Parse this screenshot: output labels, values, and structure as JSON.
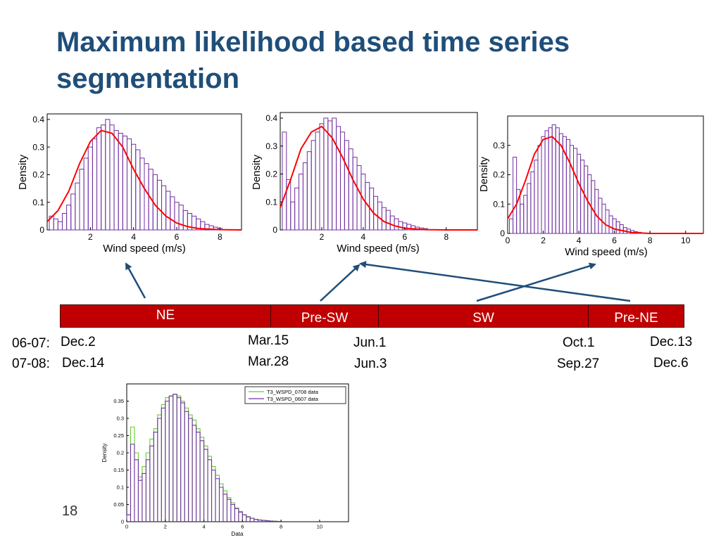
{
  "slide": {
    "title": "Maximum likelihood based time series segmentation",
    "page_number": "18"
  },
  "colors": {
    "title": "#1f4e79",
    "histogram": "#7030a0",
    "fit_curve": "#ff0000",
    "season_bar": "#c00000",
    "arrow": "#1f4e79",
    "series_0708": "#66cc33"
  },
  "seasons": {
    "segments": [
      "NE",
      "Pre-SW",
      "SW",
      "Pre-NE"
    ]
  },
  "dates": {
    "row1": {
      "label": "06-07:",
      "values": [
        "Dec.2",
        "Mar.15",
        "Jun.1",
        "Oct.1",
        "Dec.13"
      ]
    },
    "row2": {
      "label": "07-08:",
      "values": [
        "Dec.14",
        "Mar.28",
        "Jun.3",
        "Sep.27",
        "Dec.6"
      ]
    }
  },
  "chart_data": [
    {
      "type": "bar",
      "xlabel": "Wind speed (m/s)",
      "ylabel": "Density",
      "xlim": [
        0,
        9
      ],
      "ylim": [
        0,
        0.42
      ],
      "xticks": [
        2,
        4,
        6,
        8
      ],
      "yticks": [
        0,
        0.1,
        0.2,
        0.3,
        0.4
      ],
      "bins": {
        "start": 0.1,
        "width": 0.2,
        "values": [
          0.05,
          0.04,
          0.03,
          0.06,
          0.09,
          0.13,
          0.17,
          0.22,
          0.26,
          0.3,
          0.33,
          0.37,
          0.38,
          0.4,
          0.38,
          0.36,
          0.35,
          0.34,
          0.33,
          0.31,
          0.29,
          0.26,
          0.24,
          0.22,
          0.2,
          0.18,
          0.16,
          0.14,
          0.12,
          0.1,
          0.09,
          0.07,
          0.06,
          0.05,
          0.04,
          0.03,
          0.02,
          0.015,
          0.01,
          0.006
        ]
      },
      "fit": {
        "x": [
          0,
          0.5,
          1,
          1.5,
          2,
          2.5,
          3,
          3.5,
          4,
          4.5,
          5,
          5.5,
          6,
          6.5,
          7,
          8,
          9
        ],
        "y": [
          0.03,
          0.07,
          0.14,
          0.24,
          0.32,
          0.36,
          0.35,
          0.3,
          0.22,
          0.15,
          0.09,
          0.05,
          0.025,
          0.012,
          0.005,
          0.001,
          0
        ]
      }
    },
    {
      "type": "bar",
      "xlabel": "Wind speed (m/s)",
      "ylabel": "Density",
      "xlim": [
        0,
        9.5
      ],
      "ylim": [
        0,
        0.42
      ],
      "xticks": [
        2,
        4,
        6,
        8
      ],
      "yticks": [
        0,
        0.1,
        0.2,
        0.3,
        0.4
      ],
      "bins": {
        "start": 0.1,
        "width": 0.2,
        "values": [
          0.35,
          0.18,
          0.1,
          0.15,
          0.2,
          0.24,
          0.28,
          0.32,
          0.35,
          0.38,
          0.4,
          0.39,
          0.4,
          0.37,
          0.35,
          0.32,
          0.29,
          0.26,
          0.23,
          0.2,
          0.17,
          0.15,
          0.12,
          0.1,
          0.08,
          0.07,
          0.05,
          0.04,
          0.03,
          0.025,
          0.02,
          0.015,
          0.01,
          0.007,
          0.005
        ]
      },
      "fit": {
        "x": [
          0,
          0.5,
          1,
          1.5,
          2,
          2.5,
          3,
          3.5,
          4,
          4.5,
          5,
          5.5,
          6,
          7,
          8,
          9.5
        ],
        "y": [
          0.08,
          0.18,
          0.29,
          0.35,
          0.37,
          0.33,
          0.26,
          0.18,
          0.11,
          0.06,
          0.03,
          0.015,
          0.006,
          0.001,
          0,
          0
        ]
      }
    },
    {
      "type": "bar",
      "xlabel": "Wind speed (m/s)",
      "ylabel": "Density",
      "xlim": [
        0,
        11
      ],
      "ylim": [
        0,
        0.4
      ],
      "xticks": [
        0,
        2,
        4,
        6,
        8,
        10
      ],
      "yticks": [
        0,
        0.1,
        0.2,
        0.3
      ],
      "bins": {
        "start": 0.1,
        "width": 0.2,
        "values": [
          0.05,
          0.26,
          0.15,
          0.1,
          0.13,
          0.17,
          0.21,
          0.25,
          0.3,
          0.33,
          0.35,
          0.36,
          0.37,
          0.36,
          0.34,
          0.33,
          0.32,
          0.3,
          0.29,
          0.27,
          0.25,
          0.23,
          0.2,
          0.18,
          0.15,
          0.12,
          0.1,
          0.08,
          0.06,
          0.05,
          0.04,
          0.03,
          0.02,
          0.015,
          0.01,
          0.006,
          0.004,
          0.002
        ]
      },
      "fit": {
        "x": [
          0,
          0.5,
          1,
          1.5,
          2,
          2.5,
          3,
          3.5,
          4,
          4.5,
          5,
          5.5,
          6,
          7,
          8,
          11
        ],
        "y": [
          0.05,
          0.1,
          0.18,
          0.27,
          0.32,
          0.33,
          0.3,
          0.24,
          0.17,
          0.11,
          0.06,
          0.03,
          0.015,
          0.003,
          0,
          0
        ]
      }
    },
    {
      "type": "bar",
      "xlabel": "Data",
      "ylabel": "Density",
      "xlim": [
        0,
        11.5
      ],
      "ylim": [
        0,
        0.4
      ],
      "xticks": [
        0,
        2,
        4,
        6,
        8,
        10
      ],
      "yticks": [
        0,
        0.05,
        0.1,
        0.15,
        0.2,
        0.25,
        0.3,
        0.35
      ],
      "bin_start": 0,
      "bin_width": 0.2,
      "series": [
        {
          "name": "T3_WSPD_0708 data",
          "values": [
            0.02,
            0.275,
            0.2,
            0.13,
            0.16,
            0.2,
            0.24,
            0.27,
            0.31,
            0.34,
            0.36,
            0.365,
            0.37,
            0.365,
            0.35,
            0.33,
            0.31,
            0.295,
            0.27,
            0.245,
            0.22,
            0.19,
            0.16,
            0.135,
            0.11,
            0.09,
            0.07,
            0.055,
            0.04,
            0.03,
            0.02,
            0.015,
            0.01,
            0.007,
            0.005,
            0.004,
            0.003,
            0.002,
            0.0015,
            0.001
          ]
        },
        {
          "name": "T3_WSPD_0607 data",
          "values": [
            0.02,
            0.225,
            0.18,
            0.12,
            0.14,
            0.18,
            0.22,
            0.26,
            0.3,
            0.33,
            0.35,
            0.365,
            0.37,
            0.36,
            0.345,
            0.32,
            0.3,
            0.28,
            0.26,
            0.235,
            0.21,
            0.18,
            0.15,
            0.125,
            0.1,
            0.08,
            0.065,
            0.05,
            0.038,
            0.028,
            0.02,
            0.014,
            0.01,
            0.007,
            0.005,
            0.004,
            0.003,
            0.002,
            0.0015,
            0.001
          ]
        }
      ]
    }
  ]
}
